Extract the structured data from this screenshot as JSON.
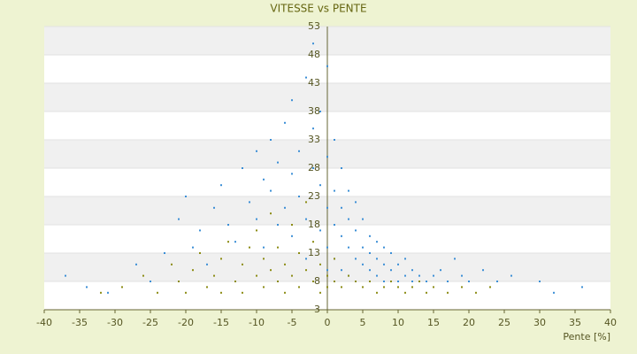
{
  "chart_data": {
    "type": "scatter",
    "title": "VITESSE vs PENTE",
    "x_label": "Pente [%]",
    "xlim": [
      -40,
      40
    ],
    "xticks": [
      -40,
      -35,
      -30,
      -25,
      -20,
      -15,
      -10,
      -5,
      0,
      5,
      10,
      15,
      20,
      25,
      30,
      35,
      40
    ],
    "ylim": [
      3,
      53
    ],
    "yticks": [
      3,
      8,
      13,
      18,
      23,
      28,
      33,
      38,
      43,
      48,
      53
    ],
    "grid": true,
    "series": [
      {
        "color": "#3c8fd6",
        "x": [
          -37,
          -34,
          -31,
          -27,
          -25,
          -23,
          -21,
          -20,
          -19,
          -18,
          -17,
          -16,
          -15,
          -14,
          -13,
          -12,
          -11,
          -10,
          -10,
          -9,
          -9,
          -8,
          -8,
          -7,
          -7,
          -6,
          -6,
          -5,
          -5,
          -5,
          -4,
          -4,
          -3,
          -3,
          -3,
          -2,
          -2,
          -2,
          -1,
          -1,
          -1,
          0,
          0,
          0,
          0,
          0,
          1,
          1,
          1,
          1,
          2,
          2,
          2,
          2,
          3,
          3,
          3,
          3,
          4,
          4,
          4,
          5,
          5,
          5,
          6,
          6,
          6,
          7,
          7,
          7,
          8,
          8,
          8,
          9,
          9,
          10,
          10,
          11,
          11,
          12,
          12,
          13,
          14,
          15,
          16,
          17,
          18,
          19,
          20,
          22,
          24,
          26,
          30,
          32,
          36
        ],
        "values": [
          9,
          7,
          6,
          11,
          8,
          13,
          19,
          23,
          14,
          17,
          11,
          21,
          25,
          18,
          15,
          28,
          22,
          19,
          31,
          14,
          26,
          24,
          33,
          18,
          29,
          21,
          36,
          16,
          27,
          40,
          23,
          31,
          19,
          44,
          12,
          28,
          35,
          50,
          17,
          25,
          38,
          21,
          30,
          46,
          14,
          10,
          18,
          24,
          33,
          12,
          16,
          21,
          28,
          10,
          14,
          19,
          24,
          9,
          12,
          17,
          22,
          11,
          14,
          19,
          10,
          13,
          16,
          9,
          12,
          15,
          8,
          11,
          14,
          10,
          13,
          8,
          11,
          9,
          12,
          8,
          10,
          9,
          8,
          9,
          10,
          8,
          12,
          9,
          8,
          10,
          8,
          9,
          8,
          6,
          7
        ]
      },
      {
        "color": "#8c8c14",
        "x": [
          -32,
          -29,
          -26,
          -24,
          -22,
          -21,
          -20,
          -19,
          -18,
          -17,
          -16,
          -15,
          -15,
          -14,
          -13,
          -12,
          -12,
          -11,
          -10,
          -10,
          -9,
          -9,
          -8,
          -8,
          -7,
          -7,
          -6,
          -6,
          -5,
          -5,
          -4,
          -4,
          -3,
          -3,
          -2,
          -2,
          -1,
          -1,
          0,
          0,
          1,
          1,
          2,
          3,
          4,
          5,
          6,
          7,
          8,
          9,
          10,
          11,
          12,
          13,
          14,
          15,
          17,
          19,
          21,
          23
        ],
        "values": [
          6,
          7,
          9,
          6,
          11,
          8,
          6,
          10,
          13,
          7,
          9,
          12,
          6,
          15,
          8,
          11,
          6,
          14,
          9,
          17,
          7,
          12,
          10,
          20,
          8,
          14,
          11,
          6,
          9,
          18,
          7,
          13,
          10,
          22,
          8,
          15,
          6,
          11,
          7,
          9,
          8,
          12,
          7,
          9,
          8,
          7,
          8,
          6,
          7,
          8,
          7,
          6,
          7,
          8,
          6,
          7,
          6,
          7,
          6,
          7
        ]
      }
    ]
  }
}
